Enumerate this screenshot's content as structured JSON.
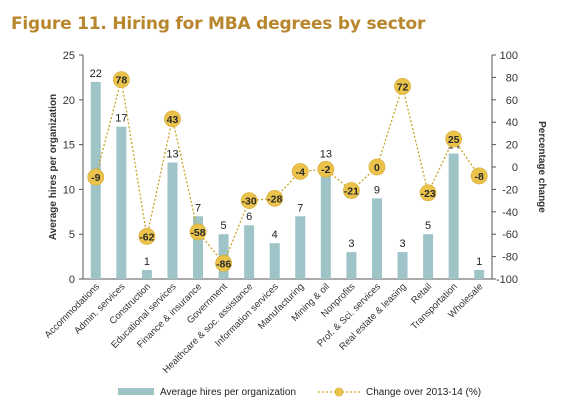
{
  "colors": {
    "title": "#b8862d",
    "bar": "#9ec4c8",
    "line": "#c9a227",
    "marker": "#ebc34a",
    "axis_text": "#333333"
  },
  "chart_data": {
    "type": "bar",
    "title": "Figure 11. Hiring for MBA degrees by sector",
    "ylabel": "Average hires per organization",
    "y2label": "Percentage change",
    "ylim": [
      0,
      25
    ],
    "yticks": [
      0,
      5,
      10,
      15,
      20,
      25
    ],
    "y2lim": [
      -100,
      100
    ],
    "y2ticks": [
      -100,
      -80,
      -60,
      -40,
      -20,
      0,
      20,
      40,
      60,
      80,
      100
    ],
    "categories": [
      "Accommodations",
      "Admin. services",
      "Construction",
      "Educational services",
      "Finance & insurance",
      "Government",
      "Healthcare & soc. assistance",
      "Information services",
      "Manufacturing",
      "Mining & oil",
      "Nonprofits",
      "Prof. & Sci. services",
      "Real estate & leasing",
      "Retail",
      "Transportation",
      "Wholesale"
    ],
    "series": [
      {
        "name": "Average hires per organization",
        "type": "bar",
        "axis": "left",
        "values": [
          22,
          17,
          1,
          13,
          7,
          5,
          6,
          4,
          7,
          13,
          3,
          9,
          3,
          5,
          14,
          1
        ]
      },
      {
        "name": "Change over 2013-14 (%)",
        "type": "line",
        "axis": "right",
        "values": [
          -9,
          78,
          -62,
          43,
          -58,
          -86,
          -30,
          -28,
          -4,
          -2,
          -21,
          0,
          72,
          -23,
          25,
          -8
        ]
      }
    ],
    "legend_position": "bottom",
    "grid": false
  }
}
